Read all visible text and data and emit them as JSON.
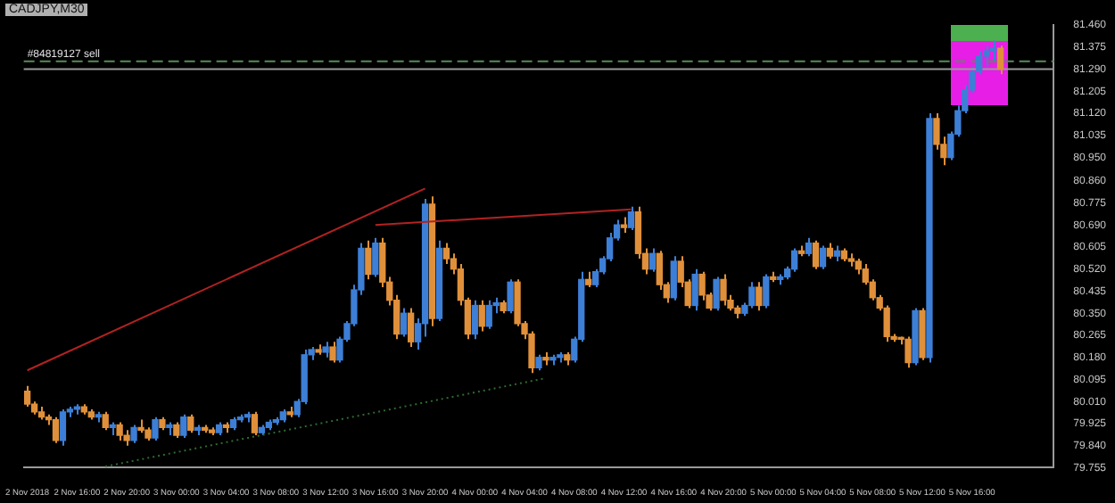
{
  "chart_data": {
    "type": "candlestick",
    "title": "CADJPY,M30",
    "categories": [
      "2 Nov 2018",
      null,
      null,
      null,
      null,
      null,
      null,
      "2 Nov 16:00",
      null,
      null,
      null,
      null,
      null,
      null,
      "2 Nov 20:00",
      null,
      null,
      null,
      null,
      null,
      null,
      "3 Nov 00:00",
      null,
      null,
      null,
      null,
      null,
      null,
      "3 Nov 04:00",
      null,
      null,
      null,
      null,
      null,
      null,
      "3 Nov 08:00",
      null,
      null,
      null,
      null,
      null,
      null,
      "3 Nov 12:00",
      null,
      null,
      null,
      null,
      null,
      null,
      "3 Nov 16:00",
      null,
      null,
      null,
      null,
      null,
      null,
      "3 Nov 20:00",
      null,
      null,
      null,
      null,
      null,
      null,
      "4 Nov 00:00",
      null,
      null,
      null,
      null,
      null,
      null,
      "4 Nov 04:00",
      null,
      null,
      null,
      null,
      null,
      null,
      "4 Nov 08:00",
      null,
      null,
      null,
      null,
      null,
      null,
      "4 Nov 12:00",
      null,
      null,
      null,
      null,
      null,
      null,
      "4 Nov 16:00",
      null,
      null,
      null,
      null,
      null,
      null,
      "4 Nov 20:00",
      null,
      null,
      null,
      null,
      null,
      null,
      "5 Nov 00:00",
      null,
      null,
      null,
      null,
      null,
      null,
      "5 Nov 04:00",
      null,
      null,
      null,
      null,
      null,
      null,
      "5 Nov 08:00",
      null,
      null,
      null,
      null,
      null,
      null,
      "5 Nov 12:00",
      null,
      null,
      null,
      null,
      null,
      null,
      "5 Nov 16:00",
      null,
      null,
      null,
      null,
      null,
      null,
      null,
      null,
      null,
      null,
      null
    ],
    "ohlc": [
      [
        80.05,
        80.07,
        79.99,
        80.0
      ],
      [
        80.0,
        80.01,
        79.96,
        79.97
      ],
      [
        79.97,
        79.99,
        79.94,
        79.95
      ],
      [
        79.95,
        79.96,
        79.92,
        79.94
      ],
      [
        79.94,
        79.95,
        79.85,
        79.86
      ],
      [
        79.86,
        79.98,
        79.84,
        79.97
      ],
      [
        79.97,
        79.99,
        79.95,
        79.98
      ],
      [
        79.98,
        80.0,
        79.96,
        79.99
      ],
      [
        79.99,
        80.0,
        79.96,
        79.97
      ],
      [
        79.97,
        79.98,
        79.94,
        79.95
      ],
      [
        79.95,
        79.97,
        79.93,
        79.96
      ],
      [
        79.96,
        79.97,
        79.9,
        79.91
      ],
      [
        79.91,
        79.93,
        79.88,
        79.92
      ],
      [
        79.92,
        79.93,
        79.86,
        79.88
      ],
      [
        79.88,
        79.9,
        79.84,
        79.86
      ],
      [
        79.86,
        79.92,
        79.85,
        79.91
      ],
      [
        79.91,
        79.94,
        79.89,
        79.9
      ],
      [
        79.9,
        79.91,
        79.86,
        79.87
      ],
      [
        79.87,
        79.95,
        79.86,
        79.94
      ],
      [
        79.94,
        79.95,
        79.9,
        79.91
      ],
      [
        79.91,
        79.93,
        79.88,
        79.92
      ],
      [
        79.92,
        79.93,
        79.87,
        79.88
      ],
      [
        79.88,
        79.96,
        79.87,
        79.95
      ],
      [
        79.95,
        79.96,
        79.89,
        79.9
      ],
      [
        79.9,
        79.92,
        79.88,
        79.91
      ],
      [
        79.91,
        79.92,
        79.89,
        79.9
      ],
      [
        79.9,
        79.91,
        79.88,
        79.89
      ],
      [
        79.89,
        79.93,
        79.88,
        79.92
      ],
      [
        79.92,
        79.93,
        79.89,
        79.91
      ],
      [
        79.91,
        79.95,
        79.9,
        79.94
      ],
      [
        79.94,
        79.96,
        79.93,
        79.95
      ],
      [
        79.95,
        79.97,
        79.93,
        79.96
      ],
      [
        79.96,
        79.97,
        79.88,
        79.89
      ],
      [
        79.89,
        79.92,
        79.88,
        79.91
      ],
      [
        79.91,
        79.94,
        79.9,
        79.93
      ],
      [
        79.93,
        79.95,
        79.92,
        79.94
      ],
      [
        79.94,
        79.98,
        79.93,
        79.97
      ],
      [
        79.97,
        79.99,
        79.95,
        79.96
      ],
      [
        79.96,
        80.02,
        79.95,
        80.01
      ],
      [
        80.01,
        80.21,
        80.0,
        80.19
      ],
      [
        80.19,
        80.22,
        80.17,
        80.21
      ],
      [
        80.21,
        80.23,
        80.19,
        80.2
      ],
      [
        80.2,
        80.24,
        80.18,
        80.22
      ],
      [
        80.22,
        80.24,
        80.16,
        80.17
      ],
      [
        80.17,
        80.26,
        80.16,
        80.25
      ],
      [
        80.25,
        80.32,
        80.24,
        80.31
      ],
      [
        80.31,
        80.46,
        80.3,
        80.44
      ],
      [
        80.44,
        80.62,
        80.42,
        80.6
      ],
      [
        80.6,
        80.63,
        80.48,
        80.5
      ],
      [
        80.5,
        80.64,
        80.49,
        80.62
      ],
      [
        80.62,
        80.64,
        80.45,
        80.47
      ],
      [
        80.47,
        80.49,
        80.38,
        80.4
      ],
      [
        80.4,
        80.42,
        80.25,
        80.27
      ],
      [
        80.27,
        80.37,
        80.26,
        80.35
      ],
      [
        80.35,
        80.37,
        80.22,
        80.24
      ],
      [
        80.24,
        80.33,
        80.21,
        80.31
      ],
      [
        80.31,
        80.79,
        80.26,
        80.77
      ],
      [
        80.77,
        80.8,
        80.3,
        80.33
      ],
      [
        80.33,
        80.63,
        80.32,
        80.6
      ],
      [
        80.6,
        80.62,
        80.54,
        80.56
      ],
      [
        80.56,
        80.58,
        80.5,
        80.52
      ],
      [
        80.52,
        80.54,
        80.38,
        80.4
      ],
      [
        80.4,
        80.41,
        80.25,
        80.27
      ],
      [
        80.27,
        80.4,
        80.25,
        80.38
      ],
      [
        80.38,
        80.4,
        80.28,
        80.3
      ],
      [
        80.3,
        80.4,
        80.29,
        80.38
      ],
      [
        80.38,
        80.41,
        80.35,
        80.39
      ],
      [
        80.39,
        80.4,
        80.35,
        80.36
      ],
      [
        80.36,
        80.48,
        80.35,
        80.47
      ],
      [
        80.47,
        80.48,
        80.3,
        80.31
      ],
      [
        80.31,
        80.32,
        80.25,
        80.27
      ],
      [
        80.27,
        80.28,
        80.12,
        80.14
      ],
      [
        80.14,
        80.19,
        80.13,
        80.18
      ],
      [
        80.18,
        80.2,
        80.15,
        80.17
      ],
      [
        80.17,
        80.19,
        80.15,
        80.18
      ],
      [
        80.18,
        80.2,
        80.16,
        80.19
      ],
      [
        80.19,
        80.2,
        80.15,
        80.17
      ],
      [
        80.17,
        80.26,
        80.16,
        80.25
      ],
      [
        80.25,
        80.51,
        80.24,
        80.48
      ],
      [
        80.48,
        80.51,
        80.45,
        80.46
      ],
      [
        80.46,
        80.52,
        80.45,
        80.51
      ],
      [
        80.51,
        80.57,
        80.5,
        80.56
      ],
      [
        80.56,
        80.66,
        80.55,
        80.64
      ],
      [
        80.64,
        80.71,
        80.63,
        80.69
      ],
      [
        80.69,
        80.72,
        80.66,
        80.68
      ],
      [
        80.68,
        80.76,
        80.67,
        80.74
      ],
      [
        80.74,
        80.76,
        80.56,
        80.58
      ],
      [
        80.58,
        80.6,
        80.5,
        80.52
      ],
      [
        80.52,
        80.6,
        80.51,
        80.58
      ],
      [
        80.58,
        80.59,
        80.44,
        80.46
      ],
      [
        80.46,
        80.47,
        80.39,
        80.41
      ],
      [
        80.41,
        80.57,
        80.4,
        80.55
      ],
      [
        80.55,
        80.57,
        80.45,
        80.47
      ],
      [
        80.47,
        80.48,
        80.37,
        80.38
      ],
      [
        80.38,
        80.52,
        80.36,
        80.5
      ],
      [
        80.5,
        80.51,
        80.4,
        80.42
      ],
      [
        80.42,
        80.43,
        80.36,
        80.37
      ],
      [
        80.37,
        80.49,
        80.36,
        80.48
      ],
      [
        80.48,
        80.5,
        80.38,
        80.4
      ],
      [
        80.4,
        80.42,
        80.36,
        80.37
      ],
      [
        80.37,
        80.38,
        80.33,
        80.35
      ],
      [
        80.35,
        80.39,
        80.34,
        80.38
      ],
      [
        80.38,
        80.47,
        80.37,
        80.45
      ],
      [
        80.45,
        80.47,
        80.36,
        80.38
      ],
      [
        80.38,
        80.5,
        80.37,
        80.49
      ],
      [
        80.49,
        80.51,
        80.47,
        80.48
      ],
      [
        80.48,
        80.5,
        80.46,
        80.49
      ],
      [
        80.49,
        80.53,
        80.48,
        80.52
      ],
      [
        80.52,
        80.6,
        80.51,
        80.59
      ],
      [
        80.59,
        80.61,
        80.57,
        80.58
      ],
      [
        80.58,
        80.64,
        80.57,
        80.62
      ],
      [
        80.62,
        80.63,
        80.52,
        80.53
      ],
      [
        80.53,
        80.61,
        80.52,
        80.6
      ],
      [
        80.6,
        80.62,
        80.56,
        80.57
      ],
      [
        80.57,
        80.61,
        80.55,
        80.59
      ],
      [
        80.59,
        80.6,
        80.55,
        80.56
      ],
      [
        80.56,
        80.58,
        80.53,
        80.55
      ],
      [
        80.55,
        80.56,
        80.5,
        80.52
      ],
      [
        80.52,
        80.54,
        80.46,
        80.47
      ],
      [
        80.47,
        80.48,
        80.4,
        80.41
      ],
      [
        80.41,
        80.42,
        80.36,
        80.37
      ],
      [
        80.37,
        80.38,
        80.24,
        80.26
      ],
      [
        80.26,
        80.27,
        80.24,
        80.25
      ],
      [
        80.25,
        80.26,
        80.23,
        80.25
      ],
      [
        80.25,
        80.26,
        80.14,
        80.16
      ],
      [
        80.16,
        80.37,
        80.15,
        80.36
      ],
      [
        80.36,
        80.37,
        80.17,
        80.18
      ],
      [
        80.18,
        81.12,
        80.16,
        81.1
      ],
      [
        81.1,
        81.12,
        80.98,
        81.0
      ],
      [
        81.0,
        81.03,
        80.92,
        80.95
      ],
      [
        80.95,
        81.05,
        80.94,
        81.04
      ],
      [
        81.04,
        81.15,
        81.03,
        81.13
      ],
      [
        81.13,
        81.23,
        81.12,
        81.21
      ],
      [
        81.21,
        81.3,
        81.2,
        81.28
      ],
      [
        81.28,
        81.36,
        81.27,
        81.34
      ],
      [
        81.34,
        81.38,
        81.3,
        81.36
      ],
      [
        81.36,
        81.4,
        81.32,
        81.37
      ],
      [
        81.37,
        81.38,
        81.27,
        81.29
      ],
      null,
      null,
      null,
      null,
      null,
      null,
      null
    ],
    "colors": [
      "#e0903a",
      "#e0903a",
      "#e0903a",
      "#e0903a",
      "#e0903a",
      "#3d7fd6",
      "#3d7fd6",
      "#3d7fd6",
      "#e0903a",
      "#e0903a",
      "#3d7fd6",
      "#e0903a",
      "#3d7fd6",
      "#e0903a",
      "#e0903a",
      "#3d7fd6",
      "#e0903a",
      "#e0903a",
      "#3d7fd6",
      "#e0903a",
      "#3d7fd6",
      "#e0903a",
      "#3d7fd6",
      "#e0903a",
      "#3d7fd6",
      "#e0903a",
      "#e0903a",
      "#3d7fd6",
      "#e0903a",
      "#3d7fd6",
      "#3d7fd6",
      "#3d7fd6",
      "#e0903a",
      "#3d7fd6",
      "#3d7fd6",
      "#3d7fd6",
      "#3d7fd6",
      "#e0903a",
      "#3d7fd6",
      "#3d7fd6",
      "#3d7fd6",
      "#e0903a",
      "#3d7fd6",
      "#e0903a",
      "#3d7fd6",
      "#3d7fd6",
      "#3d7fd6",
      "#3d7fd6",
      "#e0903a",
      "#3d7fd6",
      "#e0903a",
      "#e0903a",
      "#e0903a",
      "#3d7fd6",
      "#e0903a",
      "#3d7fd6",
      "#3d7fd6",
      "#e0903a",
      "#3d7fd6",
      "#e0903a",
      "#e0903a",
      "#e0903a",
      "#e0903a",
      "#3d7fd6",
      "#e0903a",
      "#3d7fd6",
      "#3d7fd6",
      "#e0903a",
      "#3d7fd6",
      "#e0903a",
      "#e0903a",
      "#e0903a",
      "#3d7fd6",
      "#e0903a",
      "#3d7fd6",
      "#3d7fd6",
      "#e0903a",
      "#3d7fd6",
      "#3d7fd6",
      "#e0903a",
      "#3d7fd6",
      "#3d7fd6",
      "#3d7fd6",
      "#3d7fd6",
      "#e0903a",
      "#3d7fd6",
      "#e0903a",
      "#e0903a",
      "#3d7fd6",
      "#e0903a",
      "#e0903a",
      "#3d7fd6",
      "#e0903a",
      "#e0903a",
      "#3d7fd6",
      "#e0903a",
      "#e0903a",
      "#3d7fd6",
      "#e0903a",
      "#e0903a",
      "#e0903a",
      "#3d7fd6",
      "#3d7fd6",
      "#e0903a",
      "#3d7fd6",
      "#e0903a",
      "#3d7fd6",
      "#3d7fd6",
      "#3d7fd6",
      "#e0903a",
      "#3d7fd6",
      "#e0903a",
      "#3d7fd6",
      "#e0903a",
      "#3d7fd6",
      "#e0903a",
      "#e0903a",
      "#e0903a",
      "#e0903a",
      "#e0903a",
      "#e0903a",
      "#e0903a",
      "#e0903a",
      "#e0903a",
      "#e0903a",
      "#3d7fd6",
      "#e0903a",
      "#3d7fd6",
      "#e0903a",
      "#e0903a",
      "#3d7fd6",
      "#3d7fd6",
      "#3d7fd6",
      "#3d7fd6",
      "#3d7fd6",
      "#3d7fd6",
      "#3d7fd6",
      "#e0903a",
      null,
      null,
      null,
      null,
      null,
      null,
      null
    ],
    "series": [
      {
        "type": "line",
        "color": "#b22222",
        "marker": "none",
        "line_style": "solid",
        "values": [
          80.13,
          null,
          null,
          null,
          null,
          null,
          null,
          null,
          null,
          null,
          null,
          null,
          null,
          null,
          null,
          null,
          null,
          null,
          null,
          null,
          null,
          null,
          null,
          null,
          null,
          null,
          null,
          null,
          null,
          null,
          null,
          null,
          null,
          null,
          null,
          null,
          null,
          null,
          null,
          null,
          null,
          null,
          null,
          null,
          null,
          null,
          null,
          null,
          null,
          null,
          null,
          null,
          null,
          null,
          null,
          null,
          80.83,
          null,
          null,
          null,
          null,
          null,
          null,
          null,
          null,
          null,
          null,
          null,
          null,
          null,
          null,
          null,
          null,
          null,
          null,
          null,
          null,
          null,
          null,
          null,
          null,
          null,
          null,
          null,
          null,
          null,
          null,
          null,
          null,
          null,
          null,
          null,
          null,
          null,
          null,
          null,
          null,
          null,
          null,
          null,
          null,
          null,
          null,
          null,
          null,
          null,
          null,
          null,
          null,
          null,
          null,
          null,
          null,
          null,
          null,
          null,
          null,
          null,
          null,
          null,
          null,
          null,
          null,
          null,
          null,
          null,
          null,
          null,
          null,
          null,
          null,
          null,
          null,
          null,
          null,
          null,
          null,
          null,
          null,
          null,
          null,
          null,
          null,
          null,
          null
        ]
      },
      {
        "type": "line",
        "color": "#b22222",
        "marker": "none",
        "line_style": "solid",
        "values": [
          null,
          null,
          null,
          null,
          null,
          null,
          null,
          null,
          null,
          null,
          null,
          null,
          null,
          null,
          null,
          null,
          null,
          null,
          null,
          null,
          null,
          null,
          null,
          null,
          null,
          null,
          null,
          null,
          null,
          null,
          null,
          null,
          null,
          null,
          null,
          null,
          null,
          null,
          null,
          null,
          null,
          null,
          null,
          null,
          null,
          null,
          null,
          null,
          null,
          80.69,
          null,
          null,
          null,
          null,
          null,
          null,
          null,
          null,
          null,
          null,
          null,
          null,
          null,
          null,
          null,
          null,
          null,
          null,
          null,
          null,
          null,
          null,
          null,
          null,
          null,
          null,
          null,
          null,
          null,
          null,
          null,
          null,
          null,
          null,
          null,
          80.75,
          null,
          null,
          null,
          null,
          null,
          null,
          null,
          null,
          null,
          null,
          null,
          null,
          null,
          null,
          null,
          null,
          null,
          null,
          null,
          null,
          null,
          null,
          null,
          null,
          null,
          null,
          null,
          null,
          null,
          null,
          null,
          null,
          null,
          null,
          null,
          null,
          null,
          null,
          null,
          null,
          null,
          null,
          null,
          null,
          null,
          null,
          null,
          null,
          null,
          null,
          null,
          null,
          null,
          null,
          null,
          null,
          null,
          null,
          null
        ]
      },
      {
        "type": "line",
        "color": "#2e6b2e",
        "marker": "none",
        "line_style": "dotted",
        "values": [
          null,
          null,
          null,
          null,
          null,
          null,
          null,
          null,
          null,
          null,
          null,
          79.76,
          null,
          null,
          null,
          null,
          null,
          null,
          null,
          null,
          null,
          null,
          null,
          null,
          null,
          null,
          null,
          null,
          null,
          null,
          null,
          null,
          null,
          null,
          null,
          null,
          null,
          null,
          null,
          null,
          null,
          null,
          null,
          null,
          null,
          null,
          null,
          null,
          null,
          null,
          null,
          null,
          null,
          null,
          null,
          null,
          null,
          null,
          null,
          null,
          null,
          null,
          null,
          null,
          null,
          null,
          null,
          null,
          null,
          null,
          null,
          null,
          null,
          80.1,
          null,
          null,
          null,
          null,
          null,
          null,
          null,
          null,
          null,
          null,
          null,
          null,
          null,
          null,
          null,
          null,
          null,
          null,
          null,
          null,
          null,
          null,
          null,
          null,
          null,
          null,
          null,
          null,
          null,
          null,
          null,
          null,
          null,
          null,
          null,
          null,
          null,
          null,
          null,
          null,
          null,
          null,
          null,
          null,
          null,
          null,
          null,
          null,
          null,
          null,
          null,
          null,
          null,
          null,
          null,
          null,
          null,
          null,
          null,
          null,
          null,
          null,
          null,
          null,
          null,
          null,
          null,
          null,
          null,
          null,
          null
        ]
      }
    ],
    "ylim": [
      79.755,
      81.46
    ],
    "yticks": [
      {
        "value": 79.755,
        "label": "79.755"
      },
      {
        "value": 79.84,
        "label": "79.840"
      },
      {
        "value": 79.925,
        "label": "79.925"
      },
      {
        "value": 80.01,
        "label": "80.010"
      },
      {
        "value": 80.095,
        "label": "80.095"
      },
      {
        "value": 80.18,
        "label": "80.180"
      },
      {
        "value": 80.265,
        "label": "80.265"
      },
      {
        "value": 80.35,
        "label": "80.350"
      },
      {
        "value": 80.435,
        "label": "80.435"
      },
      {
        "value": 80.52,
        "label": "80.520"
      },
      {
        "value": 80.605,
        "label": "80.605"
      },
      {
        "value": 80.69,
        "label": "80.690"
      },
      {
        "value": 80.775,
        "label": "80.775"
      },
      {
        "value": 80.86,
        "label": "80.860"
      },
      {
        "value": 80.95,
        "label": "80.950"
      },
      {
        "value": 81.035,
        "label": "81.035"
      },
      {
        "value": 81.12,
        "label": "81.120"
      },
      {
        "value": 81.205,
        "label": "81.205"
      },
      {
        "value": 81.29,
        "label": "81.290"
      },
      {
        "value": 81.375,
        "label": "81.375"
      },
      {
        "value": 81.46,
        "label": "81.460"
      }
    ],
    "ref_lines": [
      {
        "axis": "y",
        "value": 81.32,
        "label": "#84819127 sell",
        "color": "#5a8a5a",
        "line_style": "dashed"
      },
      {
        "axis": "y",
        "value": 81.29,
        "color": "#9a9a9a",
        "line_style": "solid"
      }
    ],
    "grid": false,
    "legend": false
  }
}
